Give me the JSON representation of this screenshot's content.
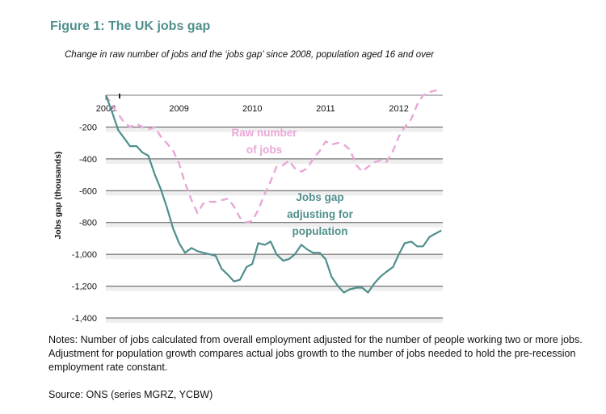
{
  "figure": {
    "title": "Figure 1: The UK jobs gap",
    "subtitle": "Change in raw number of jobs and the ‘jobs gap’ since 2008, population aged 16 and over",
    "notes": "Notes: Number of jobs calculated from overall employment adjusted for the number of people working two or more jobs. Adjustment for population growth compares actual jobs growth to the number of jobs needed to hold the pre-recession employment rate constant.",
    "source": "Source: ONS (series MGRZ, YCBW)"
  },
  "chart_data": {
    "type": "line",
    "title": "Figure 1: The UK jobs gap",
    "subtitle": "Change in raw number of jobs and the ‘jobs gap’ since 2008, population aged 16 and over",
    "xlabel": "",
    "ylabel": "Jobs gap (thousands)",
    "xlim": [
      2008,
      2012.6
    ],
    "ylim": [
      -1400,
      0
    ],
    "x_ticks": [
      2008,
      2009,
      2010,
      2011,
      2012
    ],
    "x_tick_labels": [
      "2008",
      "2009",
      "2010",
      "2011",
      "2012"
    ],
    "y_ticks": [
      -200,
      -400,
      -600,
      -800,
      -1000,
      -1200,
      -1400
    ],
    "y_tick_labels": [
      "-200",
      "-400",
      "-600",
      "-800",
      "-1,000",
      "-1,200",
      "-1,400"
    ],
    "grid": "horizontal",
    "legend": "none (series labelled directly on the plot)",
    "annotations": [
      {
        "series": "Raw number of jobs",
        "lines": [
          "Raw number",
          "of jobs"
        ]
      },
      {
        "series": "Jobs gap adjusting for population",
        "lines": [
          "Jobs gap",
          "adjusting for",
          "population"
        ]
      }
    ],
    "series": [
      {
        "name": "Raw number of jobs",
        "style": "dashed",
        "color": "#e9a7d7",
        "x": [
          2008.0,
          2008.08,
          2008.17,
          2008.25,
          2008.33,
          2008.42,
          2008.5,
          2008.58,
          2008.67,
          2008.75,
          2008.83,
          2008.92,
          2009.0,
          2009.08,
          2009.17,
          2009.25,
          2009.33,
          2009.42,
          2009.5,
          2009.58,
          2009.67,
          2009.75,
          2009.83,
          2009.92,
          2010.0,
          2010.08,
          2010.17,
          2010.25,
          2010.33,
          2010.42,
          2010.5,
          2010.58,
          2010.67,
          2010.75,
          2010.83,
          2010.92,
          2011.0,
          2011.08,
          2011.17,
          2011.25,
          2011.33,
          2011.42,
          2011.5,
          2011.58,
          2011.67,
          2011.75,
          2011.83,
          2011.92,
          2012.0,
          2012.08,
          2012.17,
          2012.25,
          2012.33,
          2012.42,
          2012.5,
          2012.58
        ],
        "values": [
          0,
          -60,
          -120,
          -170,
          -200,
          -180,
          -200,
          -215,
          -200,
          -260,
          -300,
          -350,
          -430,
          -550,
          -660,
          -740,
          -680,
          -670,
          -670,
          -660,
          -650,
          -700,
          -770,
          -800,
          -790,
          -720,
          -620,
          -540,
          -450,
          -440,
          -410,
          -460,
          -480,
          -460,
          -400,
          -350,
          -290,
          -310,
          -300,
          -310,
          -340,
          -440,
          -480,
          -450,
          -420,
          -410,
          -420,
          -350,
          -260,
          -200,
          -150,
          -60,
          0,
          20,
          30,
          40
        ]
      },
      {
        "name": "Jobs gap adjusting for population",
        "style": "solid",
        "color": "#4f8f8c",
        "x": [
          2008.0,
          2008.08,
          2008.17,
          2008.25,
          2008.33,
          2008.42,
          2008.5,
          2008.58,
          2008.67,
          2008.75,
          2008.83,
          2008.92,
          2009.0,
          2009.08,
          2009.17,
          2009.25,
          2009.33,
          2009.42,
          2009.5,
          2009.58,
          2009.67,
          2009.75,
          2009.83,
          2009.92,
          2010.0,
          2010.08,
          2010.17,
          2010.25,
          2010.33,
          2010.42,
          2010.5,
          2010.58,
          2010.67,
          2010.75,
          2010.83,
          2010.92,
          2011.0,
          2011.08,
          2011.17,
          2011.25,
          2011.33,
          2011.42,
          2011.5,
          2011.58,
          2011.67,
          2011.75,
          2011.83,
          2011.92,
          2012.0,
          2012.08,
          2012.17,
          2012.25,
          2012.33,
          2012.42,
          2012.5,
          2012.58
        ],
        "values": [
          0,
          -100,
          -220,
          -270,
          -320,
          -320,
          -360,
          -380,
          -500,
          -590,
          -700,
          -840,
          -930,
          -990,
          -960,
          -980,
          -990,
          -1000,
          -1010,
          -1090,
          -1130,
          -1170,
          -1160,
          -1080,
          -1060,
          -930,
          -940,
          -920,
          -1000,
          -1040,
          -1030,
          -1000,
          -940,
          -970,
          -990,
          -990,
          -1030,
          -1140,
          -1200,
          -1240,
          -1220,
          -1210,
          -1210,
          -1240,
          -1180,
          -1140,
          -1110,
          -1080,
          -1000,
          -930,
          -920,
          -950,
          -950,
          -890,
          -870,
          -850
        ]
      }
    ]
  }
}
